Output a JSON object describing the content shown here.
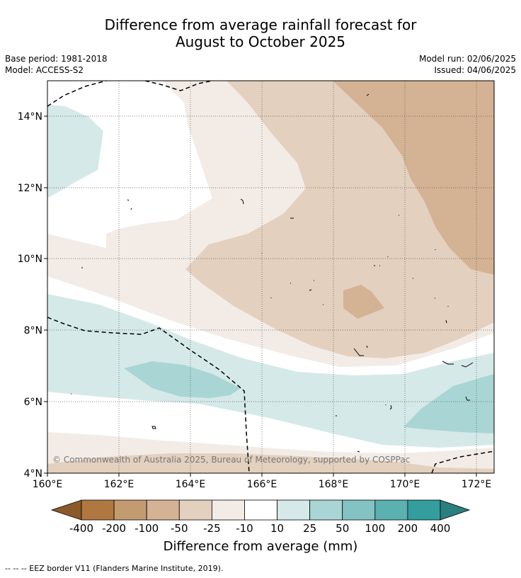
{
  "title_line1": "Difference from average rainfall forecast for",
  "title_line2": "August to October 2025",
  "base_period": "Base period: 1981-2018",
  "model": "Model: ACCESS-S2",
  "model_run": "Model run: 02/06/2025",
  "issued": "Issued: 04/06/2025",
  "copyright": "© Commonwealth of Australia 2025, Bureau of Meteorology, supported by COSPPac",
  "lat_labels": [
    "14°N",
    "12°N",
    "10°N",
    "8°N",
    "6°N",
    "4°N"
  ],
  "lon_labels": [
    "160°E",
    "162°E",
    "164°E",
    "166°E",
    "168°E",
    "170°E",
    "172°E"
  ],
  "colorbar": {
    "title": "Difference from average (mm)",
    "ticks": [
      "-400",
      "-200",
      "-100",
      "-50",
      "-25",
      "-10",
      "10",
      "25",
      "50",
      "100",
      "200",
      "400"
    ],
    "colors": [
      "#8b5a2b",
      "#b07840",
      "#c49a70",
      "#d4b294",
      "#e3d0bf",
      "#f3ece6",
      "#ffffff",
      "#d5e9e8",
      "#a9d6d5",
      "#84c3c3",
      "#5bb0b0",
      "#349d9d",
      "#2a7f7f"
    ]
  },
  "legend_note": "--  --  -- EEZ border V11 (Flanders Marine Institute, 2019)."
}
